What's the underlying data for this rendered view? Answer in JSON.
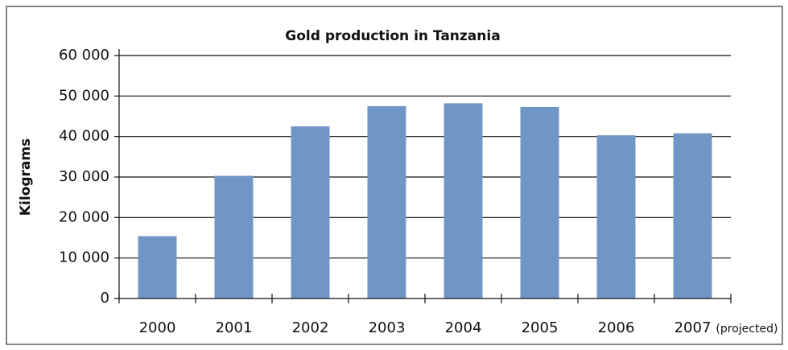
{
  "chart_data": {
    "type": "bar",
    "title": "Gold production in Tanzania",
    "y_label": "Kilograms",
    "categories": [
      "2000",
      "2001",
      "2002",
      "2003",
      "2004",
      "2005",
      "2006",
      "2007"
    ],
    "annotation": "(projected)",
    "values": [
      15400,
      30300,
      42500,
      47500,
      48200,
      47300,
      40300,
      40800
    ],
    "color": "#7096c6",
    "ylim": [
      0,
      60000
    ],
    "yticks": [
      0,
      {
        "value": 10000,
        "label": "10 000"
      },
      {
        "value": 20000,
        "label": "20 000"
      },
      {
        "value": 30000,
        "label": "30 000"
      },
      {
        "value": 40000,
        "label": "40 000"
      },
      {
        "value": 50000,
        "label": "50 000"
      },
      {
        "value": 60000,
        "label": "60 000"
      }
    ],
    "grid": true
  }
}
